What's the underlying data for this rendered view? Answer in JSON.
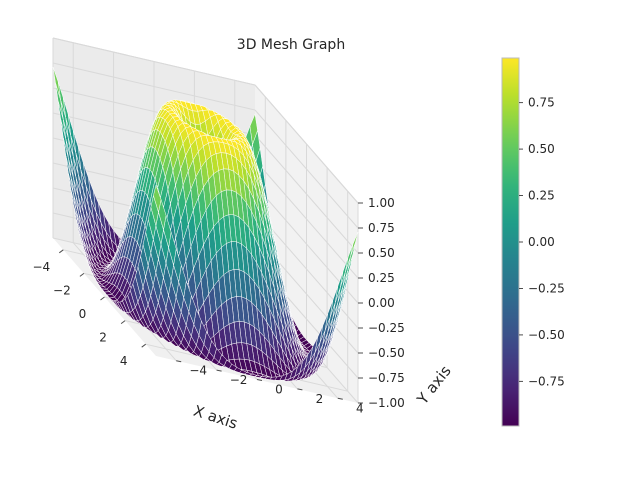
{
  "chart_data": {
    "type": "surface",
    "title": "3D Mesh Graph",
    "xlabel": "X axis",
    "ylabel": "Y axis",
    "zlabel": "",
    "function": "sin(sqrt(x^2 + y^2))",
    "x_range": [
      -5,
      5
    ],
    "y_range": [
      -5,
      5
    ],
    "zlim": [
      -1,
      1
    ],
    "grid": true,
    "x_ticks": [
      -4,
      -2,
      0,
      2,
      4
    ],
    "y_ticks": [
      -4,
      -2,
      0,
      2,
      4
    ],
    "z_ticks": [
      -1.0,
      -0.75,
      -0.5,
      -0.25,
      0.0,
      0.25,
      0.5,
      0.75,
      1.0
    ],
    "x_tick_labels": [
      "−4",
      "−2",
      "0",
      "2",
      "4"
    ],
    "y_tick_labels": [
      "−4",
      "−2",
      "0",
      "2",
      "4"
    ],
    "z_tick_labels": [
      "−1.00",
      "−0.75",
      "−0.50",
      "−0.25",
      "0.00",
      "0.25",
      "0.50",
      "0.75",
      "1.00"
    ],
    "colormap": "viridis",
    "mesh_edge_color": "#ffffff",
    "colorbar": {
      "range": [
        -0.99,
        0.99
      ],
      "ticks": [
        -0.75,
        -0.5,
        -0.25,
        0.0,
        0.25,
        0.5,
        0.75
      ],
      "tick_labels": [
        "−0.75",
        "−0.50",
        "−0.25",
        "0.00",
        "0.25",
        "0.50",
        "0.75"
      ],
      "placement": "right"
    }
  },
  "colors": {
    "pane": "#f0f0f0",
    "grid": "#d9d9d9",
    "edge": "#ffffff",
    "text": "#262626"
  }
}
